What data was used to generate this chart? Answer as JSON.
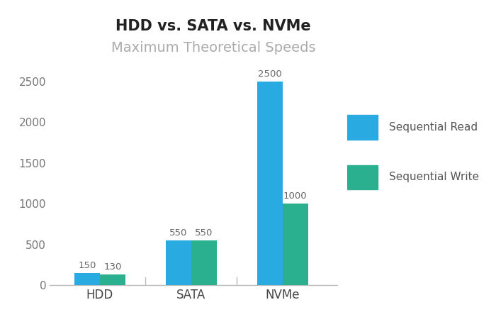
{
  "title": "HDD vs. SATA vs. NVMe",
  "subtitle": "Maximum Theoretical Speeds",
  "categories": [
    "HDD",
    "SATA",
    "NVMe"
  ],
  "sequential_read": [
    150,
    550,
    2500
  ],
  "sequential_write": [
    130,
    550,
    1000
  ],
  "read_color": "#29ABE2",
  "write_color": "#2AAF8F",
  "title_fontsize": 15,
  "subtitle_fontsize": 14,
  "subtitle_color": "#aaaaaa",
  "title_color": "#222222",
  "label_color": "#666666",
  "ylim": [
    0,
    2800
  ],
  "yticks": [
    0,
    500,
    1000,
    1500,
    2000,
    2500
  ],
  "bar_width": 0.28,
  "background_color": "#ffffff",
  "legend_labels": [
    "Sequential Read",
    "Sequential Write"
  ],
  "bar_label_fontsize": 9.5,
  "tick_label_fontsize": 12,
  "ytick_label_fontsize": 11
}
